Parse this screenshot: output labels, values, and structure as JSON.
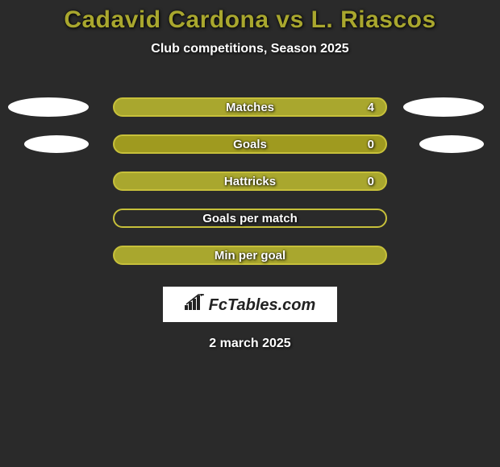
{
  "header": {
    "title": "Cadavid Cardona vs L. Riascos",
    "subtitle": "Club competitions, Season 2025"
  },
  "style": {
    "background_color": "#2a2a2a",
    "title_color": "#a9a72e",
    "text_color": "#ffffff",
    "bar_fill_color": "#a9a72e",
    "bar_fill_color_alt": "#9f9a1f",
    "bar_border_color": "#c7c03a",
    "ellipse_color": "#ffffff",
    "title_fontsize": 30,
    "subtitle_fontsize": 16,
    "label_fontsize": 15
  },
  "rows": [
    {
      "label": "Matches",
      "value": "4",
      "show_value": true,
      "left_mark": "large",
      "right_mark": "large",
      "fill": "solid"
    },
    {
      "label": "Goals",
      "value": "0",
      "show_value": true,
      "left_mark": "small",
      "right_mark": "small",
      "fill": "solid"
    },
    {
      "label": "Hattricks",
      "value": "0",
      "show_value": true,
      "left_mark": null,
      "right_mark": null,
      "fill": "solid"
    },
    {
      "label": "Goals per match",
      "value": "",
      "show_value": false,
      "left_mark": null,
      "right_mark": null,
      "fill": "outline"
    },
    {
      "label": "Min per goal",
      "value": "",
      "show_value": false,
      "left_mark": null,
      "right_mark": null,
      "fill": "solid"
    }
  ],
  "logo": {
    "text": "FcTables.com"
  },
  "footer": {
    "date": "2 march 2025"
  }
}
